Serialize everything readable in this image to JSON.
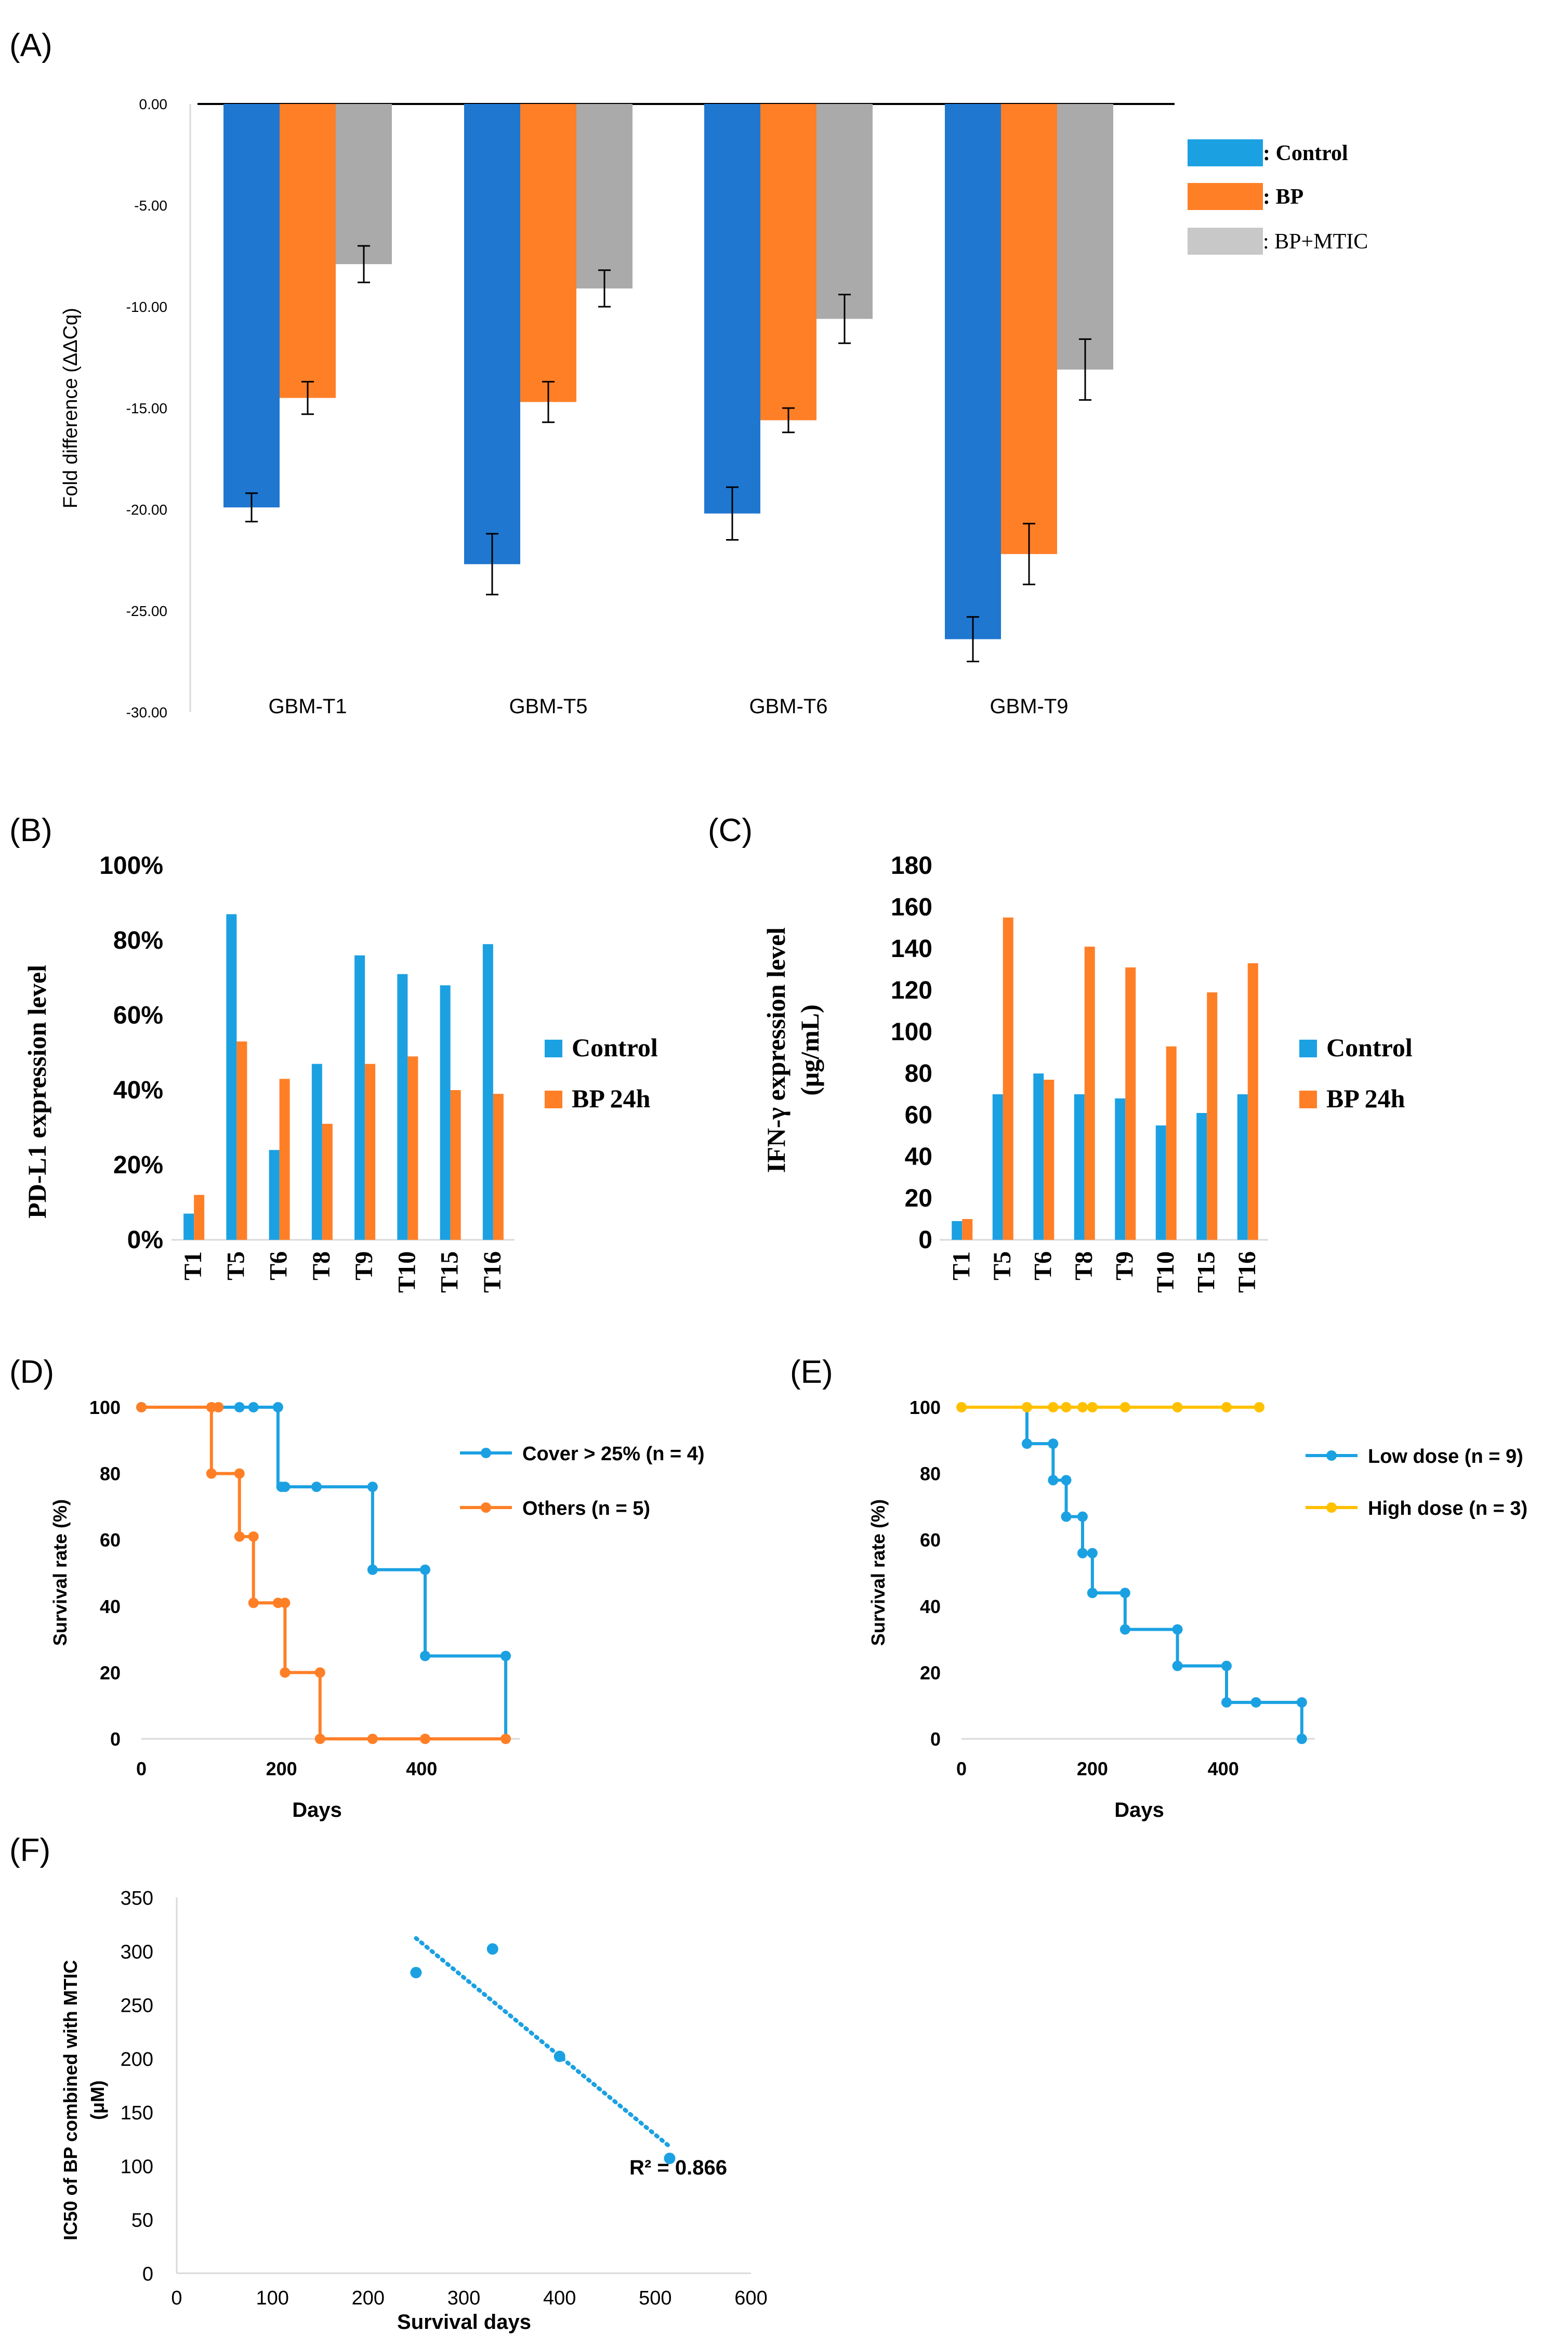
{
  "colors": {
    "blue": "#1F77D0",
    "orange": "#FF7F27",
    "grey": "#AAAAAA",
    "lightgrey": "#C8C8C8",
    "skyblue": "#1BA1E2",
    "yellow": "#FFC000",
    "axis": "#D9D9D9",
    "text": "#000000"
  },
  "panels": {
    "A": "(A)",
    "B": "(B)",
    "C": "(C)",
    "D": "(D)",
    "E": "(E)",
    "F": "(F)"
  },
  "chart_data": [
    {
      "id": "A",
      "type": "bar",
      "title": "",
      "ylabel": "Fold difference (ΔΔCq)",
      "xlabel": "",
      "categories": [
        "GBM-T1",
        "GBM-T5",
        "GBM-T6",
        "GBM-T9"
      ],
      "series": [
        {
          "name": ": Control",
          "values": [
            -19.9,
            -22.7,
            -20.2,
            -26.4
          ],
          "errors": [
            0.7,
            1.5,
            1.3,
            1.1
          ]
        },
        {
          "name": ": BP",
          "values": [
            -14.5,
            -14.7,
            -15.6,
            -22.2
          ],
          "errors": [
            0.8,
            1.0,
            0.6,
            1.5
          ]
        },
        {
          "name": ": BP+MTIC",
          "values": [
            -7.9,
            -9.1,
            -10.6,
            -13.1
          ],
          "errors": [
            0.9,
            0.9,
            1.2,
            1.5
          ]
        }
      ],
      "ylim": [
        -30,
        0
      ],
      "yticks": [
        "0.00",
        "-5.00",
        "-10.00",
        "-15.00",
        "-20.00",
        "-25.00",
        "-30.00"
      ],
      "legend": "right"
    },
    {
      "id": "B",
      "type": "bar",
      "ylabel": "PD-L1 expression level",
      "categories": [
        "T1",
        "T5",
        "T6",
        "T8",
        "T9",
        "T10",
        "T15",
        "T16"
      ],
      "series": [
        {
          "name": "Control",
          "values": [
            7,
            87,
            24,
            47,
            76,
            71,
            68,
            79
          ]
        },
        {
          "name": "BP 24h",
          "values": [
            12,
            53,
            43,
            31,
            47,
            49,
            40,
            39
          ]
        }
      ],
      "ylim": [
        0,
        100
      ],
      "yticks": [
        "0%",
        "20%",
        "40%",
        "60%",
        "80%",
        "100%"
      ],
      "legend": "right"
    },
    {
      "id": "C",
      "type": "bar",
      "ylabel": "IFN-γ expression level",
      "ylabel2": "(μg/mL)",
      "categories": [
        "T1",
        "T5",
        "T6",
        "T8",
        "T9",
        "T10",
        "T15",
        "T16"
      ],
      "series": [
        {
          "name": "Control",
          "values": [
            9,
            70,
            80,
            70,
            68,
            55,
            61,
            70
          ]
        },
        {
          "name": "BP 24h",
          "values": [
            10,
            155,
            77,
            141,
            131,
            93,
            119,
            133
          ]
        }
      ],
      "ylim": [
        0,
        180
      ],
      "yticks": [
        "0",
        "20",
        "40",
        "60",
        "80",
        "100",
        "120",
        "140",
        "160",
        "180"
      ],
      "legend": "right"
    },
    {
      "id": "D",
      "type": "line",
      "xlabel": "Days",
      "ylabel": "Survival rate (%)",
      "xlim": [
        0,
        540
      ],
      "ylim": [
        0,
        100
      ],
      "xticks": [
        "0",
        "200",
        "400"
      ],
      "yticks": [
        "0",
        "20",
        "40",
        "60",
        "80",
        "100"
      ],
      "series": [
        {
          "name": "Cover > 25% (n = 4)",
          "steps": [
            [
              0,
              100
            ],
            [
              195,
              100
            ],
            [
              195,
              76
            ],
            [
              330,
              76
            ],
            [
              330,
              51
            ],
            [
              405,
              51
            ],
            [
              405,
              25
            ],
            [
              520,
              25
            ],
            [
              520,
              0
            ]
          ],
          "points": [
            [
              0,
              100
            ],
            [
              140,
              100
            ],
            [
              160,
              100
            ],
            [
              195,
              100
            ],
            [
              200,
              76
            ],
            [
              205,
              76
            ],
            [
              250,
              76
            ],
            [
              330,
              76
            ],
            [
              330,
              51
            ],
            [
              405,
              51
            ],
            [
              405,
              25
            ],
            [
              520,
              25
            ]
          ]
        },
        {
          "name": "Others (n = 5)",
          "steps": [
            [
              0,
              100
            ],
            [
              100,
              100
            ],
            [
              100,
              80
            ],
            [
              140,
              80
            ],
            [
              140,
              61
            ],
            [
              160,
              61
            ],
            [
              160,
              41
            ],
            [
              205,
              41
            ],
            [
              205,
              20
            ],
            [
              255,
              20
            ],
            [
              255,
              0
            ],
            [
              520,
              0
            ]
          ],
          "points": [
            [
              0,
              100
            ],
            [
              100,
              100
            ],
            [
              110,
              100
            ],
            [
              100,
              80
            ],
            [
              140,
              80
            ],
            [
              140,
              61
            ],
            [
              160,
              61
            ],
            [
              160,
              41
            ],
            [
              195,
              41
            ],
            [
              205,
              41
            ],
            [
              205,
              20
            ],
            [
              255,
              20
            ],
            [
              255,
              0
            ],
            [
              330,
              0
            ],
            [
              405,
              0
            ],
            [
              520,
              0
            ]
          ]
        }
      ],
      "legend": "right"
    },
    {
      "id": "E",
      "type": "line",
      "xlabel": "Days",
      "ylabel": "Survival rate (%)",
      "xlim": [
        0,
        540
      ],
      "ylim": [
        0,
        100
      ],
      "xticks": [
        "0",
        "200",
        "400"
      ],
      "yticks": [
        "0",
        "20",
        "40",
        "60",
        "80",
        "100"
      ],
      "series": [
        {
          "name": "Low dose (n = 9)",
          "steps": [
            [
              100,
              100
            ],
            [
              100,
              89
            ],
            [
              140,
              89
            ],
            [
              140,
              78
            ],
            [
              160,
              78
            ],
            [
              160,
              67
            ],
            [
              185,
              67
            ],
            [
              185,
              56
            ],
            [
              200,
              56
            ],
            [
              200,
              44
            ],
            [
              250,
              44
            ],
            [
              250,
              33
            ],
            [
              330,
              33
            ],
            [
              330,
              22
            ],
            [
              405,
              22
            ],
            [
              405,
              11
            ],
            [
              520,
              11
            ],
            [
              520,
              0
            ]
          ],
          "points": [
            [
              100,
              89
            ],
            [
              140,
              89
            ],
            [
              140,
              78
            ],
            [
              160,
              78
            ],
            [
              160,
              67
            ],
            [
              185,
              67
            ],
            [
              185,
              56
            ],
            [
              200,
              56
            ],
            [
              200,
              44
            ],
            [
              250,
              44
            ],
            [
              250,
              33
            ],
            [
              330,
              33
            ],
            [
              330,
              22
            ],
            [
              405,
              22
            ],
            [
              405,
              11
            ],
            [
              450,
              11
            ],
            [
              520,
              11
            ],
            [
              520,
              0
            ]
          ]
        },
        {
          "name": "High dose (n = 3)",
          "steps": [
            [
              0,
              100
            ],
            [
              455,
              100
            ]
          ],
          "points": [
            [
              0,
              100
            ],
            [
              100,
              100
            ],
            [
              140,
              100
            ],
            [
              160,
              100
            ],
            [
              185,
              100
            ],
            [
              200,
              100
            ],
            [
              250,
              100
            ],
            [
              330,
              100
            ],
            [
              405,
              100
            ],
            [
              455,
              100
            ]
          ]
        }
      ],
      "legend": "right"
    },
    {
      "id": "F",
      "type": "scatter",
      "xlabel": "Survival days",
      "ylabel": "IC50 of BP combined with MTIC",
      "ylabel2": "(μM)",
      "xlim": [
        0,
        600
      ],
      "ylim": [
        0,
        350
      ],
      "xticks": [
        "0",
        "100",
        "200",
        "300",
        "400",
        "500",
        "600"
      ],
      "yticks": [
        "0",
        "50",
        "100",
        "150",
        "200",
        "250",
        "300",
        "350"
      ],
      "x": [
        250,
        330,
        400,
        515
      ],
      "y": [
        280,
        302,
        202,
        107
      ],
      "trendline": [
        [
          250,
          312
        ],
        [
          515,
          118
        ]
      ],
      "annotation": "R² = 0.866"
    }
  ]
}
